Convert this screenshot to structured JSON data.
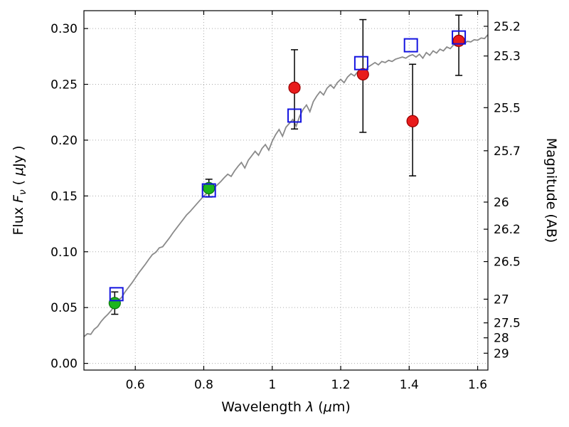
{
  "figure": {
    "background": "#ffffff",
    "axis_color": "#000000",
    "grid_color": "#aaaaaa",
    "errorbar_color": "#000000"
  },
  "chart_data": {
    "type": "line",
    "title": "",
    "xlabel_parts": [
      {
        "t": "Wavelength  "
      },
      {
        "t": "λ",
        "style": "italic"
      },
      {
        "t": " ("
      },
      {
        "t": "μ",
        "style": "italic"
      },
      {
        "t": "m)"
      }
    ],
    "ylabel_left_parts": [
      {
        "t": "Flux  "
      },
      {
        "t": "F",
        "style": "italic"
      },
      {
        "t": "ν",
        "style": "sub-italic"
      },
      {
        "t": "  ( "
      },
      {
        "t": "μ",
        "style": "italic"
      },
      {
        "t": "Jy )"
      }
    ],
    "ylabel_right_parts": [
      {
        "t": "Magnitude (AB)"
      }
    ],
    "xlim": [
      0.45,
      1.63
    ],
    "ylim": [
      -0.006,
      0.316
    ],
    "grid": true,
    "xticks": [
      {
        "v": 0.6,
        "label": "0.6"
      },
      {
        "v": 0.8,
        "label": "0.8"
      },
      {
        "v": 1.0,
        "label": "1"
      },
      {
        "v": 1.2,
        "label": "1.2"
      },
      {
        "v": 1.4,
        "label": "1.4"
      },
      {
        "v": 1.6,
        "label": "1.6"
      }
    ],
    "yticks_left": [
      {
        "v": 0.0,
        "label": "0.00"
      },
      {
        "v": 0.05,
        "label": "0.05"
      },
      {
        "v": 0.1,
        "label": "0.10"
      },
      {
        "v": 0.15,
        "label": "0.15"
      },
      {
        "v": 0.2,
        "label": "0.20"
      },
      {
        "v": 0.25,
        "label": "0.25"
      },
      {
        "v": 0.3,
        "label": "0.30"
      }
    ],
    "yticks_right": [
      {
        "v": 0.302,
        "label": "25.2"
      },
      {
        "v": 0.2754,
        "label": "25.3"
      },
      {
        "v": 0.2291,
        "label": "25.5"
      },
      {
        "v": 0.1905,
        "label": "25.7"
      },
      {
        "v": 0.1445,
        "label": "26"
      },
      {
        "v": 0.1202,
        "label": "26.2"
      },
      {
        "v": 0.0912,
        "label": "26.5"
      },
      {
        "v": 0.0575,
        "label": "27"
      },
      {
        "v": 0.0363,
        "label": "27.5"
      },
      {
        "v": 0.0229,
        "label": "28"
      },
      {
        "v": 0.0091,
        "label": "29"
      }
    ],
    "spectrum": {
      "name": "model-spectrum",
      "color": "#8a8a8a",
      "x_start": 0.45,
      "x_step": 0.01,
      "y": [
        0.024,
        0.0265,
        0.026,
        0.0305,
        0.033,
        0.0375,
        0.041,
        0.044,
        0.0475,
        0.052,
        0.0565,
        0.059,
        0.064,
        0.068,
        0.072,
        0.0765,
        0.081,
        0.085,
        0.089,
        0.0935,
        0.0975,
        0.0995,
        0.1035,
        0.1045,
        0.1085,
        0.1125,
        0.117,
        0.121,
        0.125,
        0.129,
        0.133,
        0.136,
        0.1395,
        0.143,
        0.1465,
        0.15,
        0.1525,
        0.155,
        0.1575,
        0.16,
        0.163,
        0.1665,
        0.1695,
        0.1675,
        0.1725,
        0.1765,
        0.18,
        0.175,
        0.182,
        0.186,
        0.19,
        0.1865,
        0.1925,
        0.196,
        0.191,
        0.199,
        0.205,
        0.2095,
        0.2035,
        0.2115,
        0.215,
        0.2185,
        0.2125,
        0.2215,
        0.2275,
        0.2315,
        0.2255,
        0.2345,
        0.2395,
        0.2435,
        0.2405,
        0.2465,
        0.2495,
        0.2465,
        0.2515,
        0.2545,
        0.2515,
        0.2565,
        0.2595,
        0.2575,
        0.2615,
        0.2635,
        0.2615,
        0.2655,
        0.2675,
        0.2695,
        0.2675,
        0.2705,
        0.2695,
        0.2715,
        0.2705,
        0.2725,
        0.2735,
        0.2745,
        0.2735,
        0.2755,
        0.2765,
        0.2745,
        0.277,
        0.2735,
        0.2785,
        0.276,
        0.28,
        0.278,
        0.2815,
        0.28,
        0.2835,
        0.282,
        0.2855,
        0.284,
        0.287,
        0.2865,
        0.2885,
        0.288,
        0.29,
        0.2895,
        0.2915,
        0.291,
        0.2945
      ]
    },
    "series": [
      {
        "name": "green-circles",
        "marker": "circle",
        "fill": "#1db51d",
        "edge": "#0a7a0a",
        "size": 8,
        "points": [
          {
            "x": 0.54,
            "y": 0.054,
            "err_lo": 0.01,
            "err_hi": 0.01
          },
          {
            "x": 0.815,
            "y": 0.157,
            "err_lo": 0.008,
            "err_hi": 0.008
          }
        ]
      },
      {
        "name": "red-circles",
        "marker": "circle",
        "fill": "#e81c1c",
        "edge": "#990000",
        "size": 8,
        "points": [
          {
            "x": 1.065,
            "y": 0.247,
            "err_lo": 0.037,
            "err_hi": 0.034
          },
          {
            "x": 1.265,
            "y": 0.259,
            "err_lo": 0.052,
            "err_hi": 0.049
          },
          {
            "x": 1.41,
            "y": 0.217,
            "err_lo": 0.049,
            "err_hi": 0.051
          },
          {
            "x": 1.545,
            "y": 0.289,
            "err_lo": 0.031,
            "err_hi": 0.023
          }
        ]
      },
      {
        "name": "blue-squares",
        "marker": "square-open",
        "fill": "none",
        "edge": "#1414e0",
        "size": 9,
        "points": [
          {
            "x": 0.545,
            "y": 0.062
          },
          {
            "x": 0.815,
            "y": 0.155
          },
          {
            "x": 1.065,
            "y": 0.222
          },
          {
            "x": 1.26,
            "y": 0.269
          },
          {
            "x": 1.405,
            "y": 0.285
          },
          {
            "x": 1.545,
            "y": 0.292
          }
        ]
      }
    ]
  }
}
